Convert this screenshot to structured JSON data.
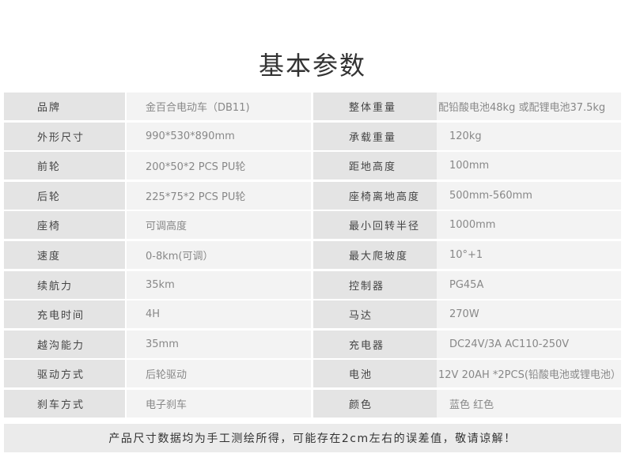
{
  "title": "基本参数",
  "rows": [
    {
      "label1": "品牌",
      "value1": "金百合电动车（DB11)",
      "label2": "整体重量",
      "value2": "配铅酸电池48kg 或配锂电池37.5kg"
    },
    {
      "label1": "外形尺寸",
      "value1": "990*530*890mm",
      "label2": "承载重量",
      "value2": "120kg"
    },
    {
      "label1": "前轮",
      "value1": "200*50*2 PCS   PU轮",
      "label2": "距地高度",
      "value2": "100mm"
    },
    {
      "label1": "后轮",
      "value1": "225*75*2 PCS   PU轮",
      "label2": "座椅离地高度",
      "value2": "500mm-560mm"
    },
    {
      "label1": "座椅",
      "value1": "可调高度",
      "label2": "最小回转半径",
      "value2": "1000mm"
    },
    {
      "label1": "速度",
      "value1": "0-8km(可调）",
      "label2": "最大爬坡度",
      "value2": "10°+1"
    },
    {
      "label1": "续航力",
      "value1": "35km",
      "label2": "控制器",
      "value2": "PG45A"
    },
    {
      "label1": "充电时间",
      "value1": "4H",
      "label2": "马达",
      "value2": "270W"
    },
    {
      "label1": "越沟能力",
      "value1": "35mm",
      "label2": "充电器",
      "value2": "DC24V/3A   AC110-250V"
    },
    {
      "label1": "驱动方式",
      "value1": "后轮驱动",
      "label2": "电池",
      "value2": "12V 20AH *2PCS(铅酸电池或锂电池）"
    },
    {
      "label1": "刹车方式",
      "value1": "电子刹车",
      "label2": "颜色",
      "value2": "蓝色  红色"
    }
  ],
  "footer": "产品尺寸数据均为手工测绘所得，可能存在2cm左右的误差值，敬请谅解！"
}
